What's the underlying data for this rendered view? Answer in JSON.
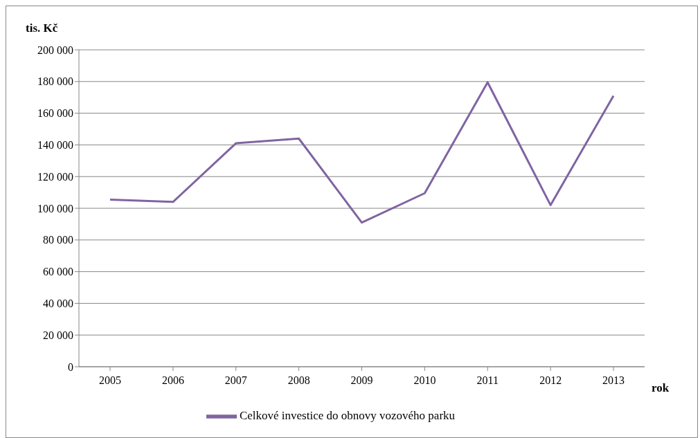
{
  "chart_data": {
    "type": "line",
    "xlabel": "rok",
    "ylabel": "tis. Kč",
    "categories": [
      "2005",
      "2006",
      "2007",
      "2008",
      "2009",
      "2010",
      "2011",
      "2012",
      "2013"
    ],
    "series": [
      {
        "name": "Celkové investice do obnovy vozového parku",
        "color": "#8064a2",
        "values": [
          105500,
          104000,
          141000,
          144000,
          91000,
          109500,
          179500,
          102000,
          171000
        ]
      }
    ],
    "ylim": [
      0,
      200000
    ],
    "yticks": [
      {
        "value": 0,
        "label": "0"
      },
      {
        "value": 20000,
        "label": "20 000"
      },
      {
        "value": 40000,
        "label": "40 000"
      },
      {
        "value": 60000,
        "label": "60 000"
      },
      {
        "value": 80000,
        "label": "80 000"
      },
      {
        "value": 100000,
        "label": "100 000"
      },
      {
        "value": 120000,
        "label": "120 000"
      },
      {
        "value": 140000,
        "label": "140 000"
      },
      {
        "value": 160000,
        "label": "160 000"
      },
      {
        "value": 180000,
        "label": "180 000"
      },
      {
        "value": 200000,
        "label": "200 000"
      }
    ],
    "grid": "y",
    "legend": "bottom",
    "marker": "none",
    "line_style": "solid"
  }
}
